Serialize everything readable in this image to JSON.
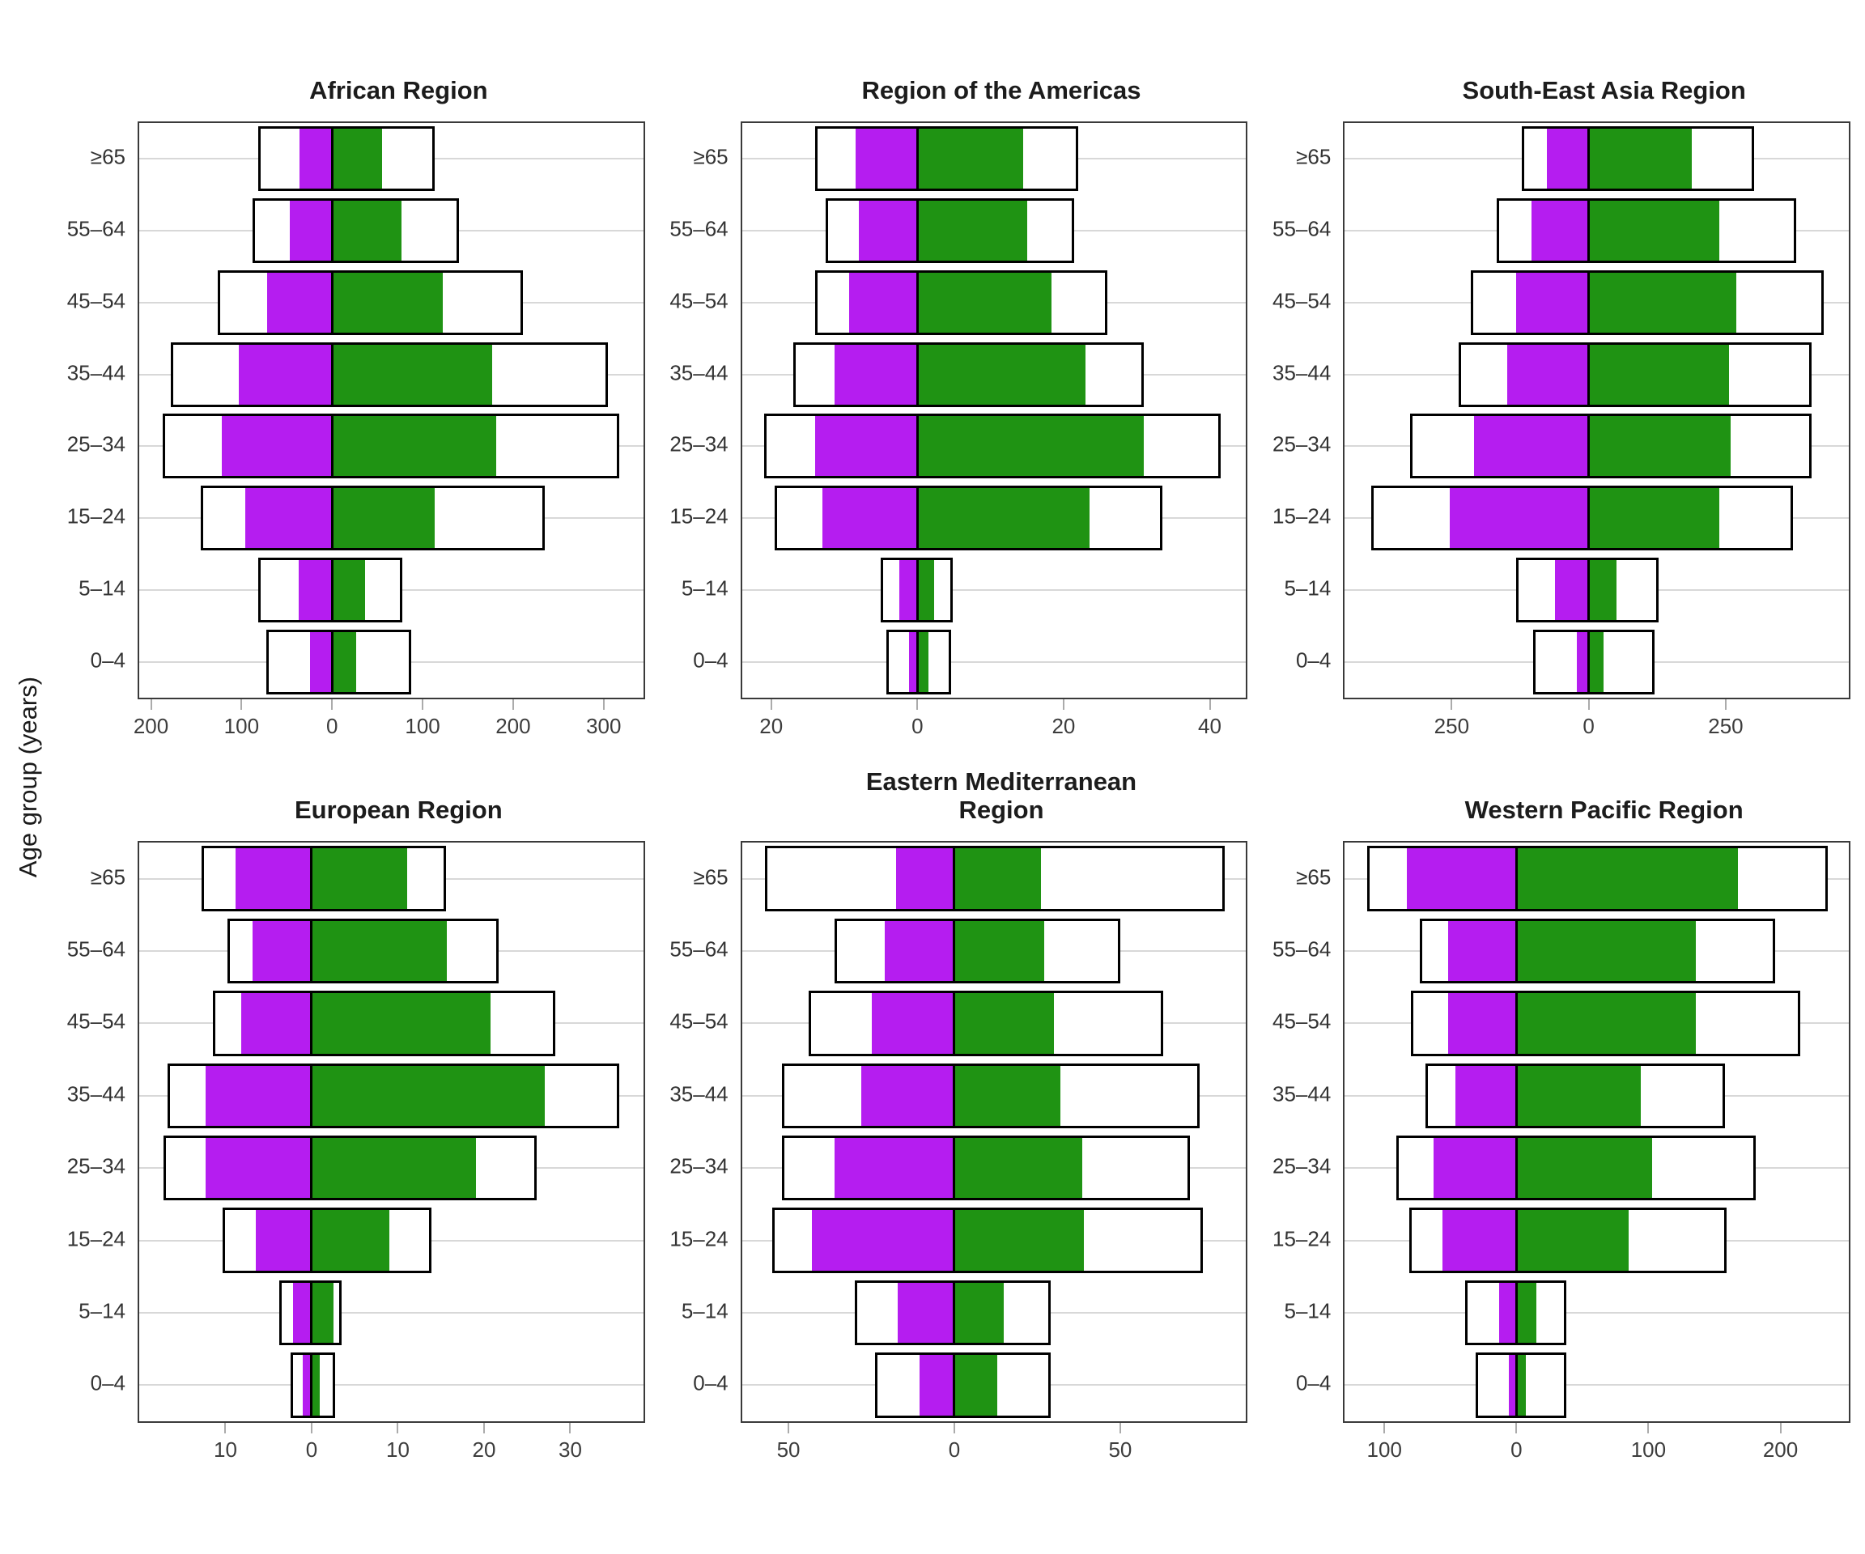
{
  "ylabel": "Age group (years)",
  "age_groups": [
    "≥65",
    "55–64",
    "45–54",
    "35–44",
    "25–34",
    "15–24",
    "5–14",
    "0–4"
  ],
  "colors": {
    "left_fill": "#b51df0",
    "right_fill": "#1f9313",
    "bar_border": "#000000",
    "panel_border": "#3a3a3a",
    "gridline": "#d8d8d8",
    "tick_mark": "#ababab",
    "tick_label": "#3d3d3d",
    "age_label": "#333333",
    "title": "#1c1c1c"
  },
  "chart_data": [
    {
      "title": "African Region",
      "type": "bar",
      "orientation": "horizontal-diverging",
      "axis": {
        "min": -213,
        "max": 344,
        "ticks": [
          {
            "v": -200,
            "label": "200"
          },
          {
            "v": -100,
            "label": "100"
          },
          {
            "v": 0,
            "label": "0"
          },
          {
            "v": 100,
            "label": "100"
          },
          {
            "v": 200,
            "label": "200"
          },
          {
            "v": 300,
            "label": "300"
          }
        ]
      },
      "series": {
        "outer_left": [
          82,
          88,
          126,
          178,
          187,
          145,
          82,
          73
        ],
        "inner_left": [
          36,
          47,
          72,
          103,
          122,
          96,
          37,
          24
        ],
        "inner_right": [
          55,
          77,
          122,
          177,
          181,
          113,
          36,
          27
        ],
        "outer_right": [
          113,
          140,
          211,
          305,
          317,
          235,
          78,
          87
        ]
      }
    },
    {
      "title": "Region of the Americas",
      "type": "bar",
      "orientation": "horizontal-diverging",
      "axis": {
        "min": -24,
        "max": 45,
        "ticks": [
          {
            "v": -20,
            "label": "20"
          },
          {
            "v": 0,
            "label": "0"
          },
          {
            "v": 20,
            "label": "20"
          },
          {
            "v": 40,
            "label": "40"
          }
        ]
      },
      "series": {
        "outer_left": [
          14,
          12.5,
          14,
          17,
          21,
          19.5,
          5,
          4.2
        ],
        "inner_left": [
          8.5,
          8,
          9.3,
          11.3,
          14,
          13,
          2.5,
          1.2
        ],
        "inner_right": [
          14.5,
          15,
          18.3,
          23,
          31,
          23.5,
          2.3,
          1.5
        ],
        "outer_right": [
          22,
          21.5,
          26,
          31,
          41.5,
          33.5,
          4.8,
          4.6
        ]
      }
    },
    {
      "title": "South-East Asia Region",
      "type": "bar",
      "orientation": "horizontal-diverging",
      "axis": {
        "min": -445,
        "max": 475,
        "ticks": [
          {
            "v": -250,
            "label": "250"
          },
          {
            "v": 0,
            "label": "0"
          },
          {
            "v": 250,
            "label": "250"
          }
        ]
      },
      "series": {
        "outer_left": [
          122,
          168,
          215,
          238,
          326,
          397,
          133,
          101
        ],
        "inner_left": [
          76,
          105,
          133,
          149,
          209,
          254,
          62,
          22
        ],
        "inner_right": [
          188,
          238,
          269,
          256,
          259,
          238,
          50,
          27
        ],
        "outer_right": [
          302,
          378,
          428,
          406,
          407,
          372,
          128,
          120
        ]
      }
    },
    {
      "title": "European Region",
      "type": "bar",
      "orientation": "horizontal-diverging",
      "axis": {
        "min": -20,
        "max": 38.5,
        "ticks": [
          {
            "v": -10,
            "label": "10"
          },
          {
            "v": 0,
            "label": "0"
          },
          {
            "v": 10,
            "label": "10"
          },
          {
            "v": 20,
            "label": "20"
          },
          {
            "v": 30,
            "label": "30"
          }
        ]
      },
      "series": {
        "outer_left": [
          12.8,
          9.8,
          11.5,
          16.7,
          17.2,
          10.3,
          3.8,
          2.4
        ],
        "inner_left": [
          8.8,
          6.9,
          8.2,
          12.3,
          12.3,
          6.5,
          2.2,
          1.0
        ],
        "inner_right": [
          11.1,
          15.7,
          20.8,
          27.0,
          19.1,
          9.0,
          2.5,
          0.9
        ],
        "outer_right": [
          15.6,
          21.7,
          28.3,
          35.7,
          26.1,
          13.9,
          3.5,
          2.7
        ]
      }
    },
    {
      "title": "Eastern Mediterranean\nRegion",
      "type": "bar",
      "orientation": "horizontal-diverging",
      "axis": {
        "min": -64,
        "max": 88,
        "ticks": [
          {
            "v": -50,
            "label": "50"
          },
          {
            "v": 0,
            "label": "0"
          },
          {
            "v": 50,
            "label": "50"
          }
        ]
      },
      "series": {
        "outer_left": [
          57,
          36,
          44,
          52,
          52,
          55,
          30,
          24
        ],
        "inner_left": [
          17.5,
          21,
          25,
          28,
          36,
          43,
          17,
          10.5
        ],
        "inner_right": [
          26,
          27,
          30,
          32,
          38.5,
          39,
          15,
          13
        ],
        "outer_right": [
          81.5,
          50,
          63,
          74,
          71,
          75,
          29,
          29
        ]
      }
    },
    {
      "title": "Western Pacific Region",
      "type": "bar",
      "orientation": "horizontal-diverging",
      "axis": {
        "min": -130,
        "max": 252,
        "ticks": [
          {
            "v": -100,
            "label": "100"
          },
          {
            "v": 0,
            "label": "0"
          },
          {
            "v": 100,
            "label": "100"
          },
          {
            "v": 200,
            "label": "200"
          }
        ]
      },
      "series": {
        "outer_left": [
          113,
          73,
          80,
          69,
          91,
          81,
          39,
          31
        ],
        "inner_left": [
          83,
          52,
          52,
          46,
          63,
          56,
          13,
          6
        ],
        "inner_right": [
          168,
          136,
          136,
          94,
          103,
          85,
          15,
          7
        ],
        "outer_right": [
          236,
          196,
          215,
          158,
          181,
          159,
          38,
          38
        ]
      }
    }
  ]
}
